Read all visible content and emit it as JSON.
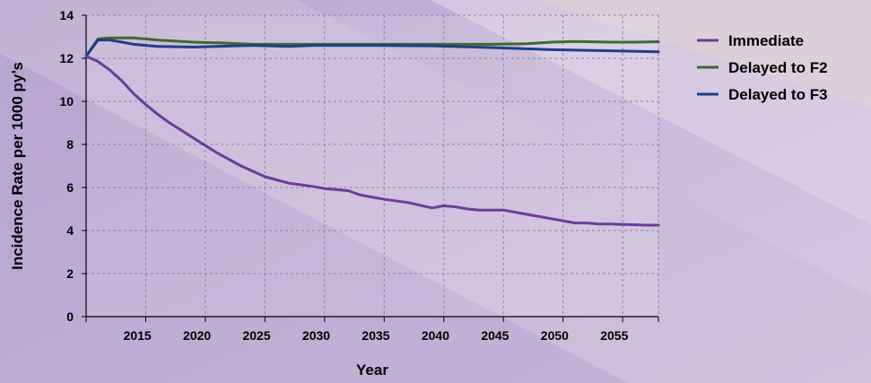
{
  "chart_data": {
    "type": "line",
    "xlabel": "Year",
    "ylabel": "Incidence Rate per 1000 py’s",
    "xlim": [
      2011,
      2059
    ],
    "ylim": [
      0,
      14
    ],
    "x_ticks": [
      2015,
      2020,
      2025,
      2030,
      2035,
      2040,
      2045,
      2050,
      2055
    ],
    "y_ticks": [
      0,
      2,
      4,
      6,
      8,
      10,
      12,
      14
    ],
    "grid": true,
    "legend_position": "right",
    "series": [
      {
        "name": "Immediate",
        "color": "#6a3d9a",
        "x": [
          2011,
          2012,
          2013,
          2014,
          2015,
          2016,
          2017,
          2018,
          2019,
          2020,
          2022,
          2024,
          2026,
          2028,
          2030,
          2031,
          2032,
          2033,
          2034,
          2035,
          2036,
          2038,
          2040,
          2041,
          2042,
          2043,
          2044,
          2046,
          2048,
          2050,
          2052,
          2053,
          2054,
          2055,
          2056,
          2058,
          2059
        ],
        "values": [
          12.1,
          11.85,
          11.45,
          10.95,
          10.35,
          9.85,
          9.4,
          9.0,
          8.65,
          8.3,
          7.6,
          7.0,
          6.5,
          6.2,
          6.05,
          5.95,
          5.9,
          5.85,
          5.65,
          5.55,
          5.45,
          5.3,
          5.05,
          5.15,
          5.1,
          5.0,
          4.95,
          4.95,
          4.75,
          4.55,
          4.35,
          4.35,
          4.3,
          4.3,
          4.28,
          4.25,
          4.25
        ]
      },
      {
        "name": "Delayed to F2",
        "color": "#3b6b2b",
        "x": [
          2011,
          2012,
          2013,
          2015,
          2017,
          2020,
          2022,
          2025,
          2030,
          2035,
          2040,
          2045,
          2048,
          2050,
          2052,
          2055,
          2057,
          2059
        ],
        "values": [
          12.1,
          12.9,
          12.95,
          12.95,
          12.85,
          12.75,
          12.72,
          12.65,
          12.65,
          12.65,
          12.65,
          12.65,
          12.68,
          12.75,
          12.78,
          12.75,
          12.75,
          12.77
        ]
      },
      {
        "name": "Delayed to F3",
        "color": "#1f3f86",
        "x": [
          2011,
          2012,
          2013,
          2015,
          2017,
          2020,
          2025,
          2028,
          2030,
          2035,
          2040,
          2045,
          2050,
          2055,
          2059
        ],
        "values": [
          12.1,
          12.85,
          12.85,
          12.65,
          12.55,
          12.52,
          12.6,
          12.55,
          12.6,
          12.6,
          12.58,
          12.5,
          12.4,
          12.35,
          12.3
        ]
      }
    ]
  }
}
